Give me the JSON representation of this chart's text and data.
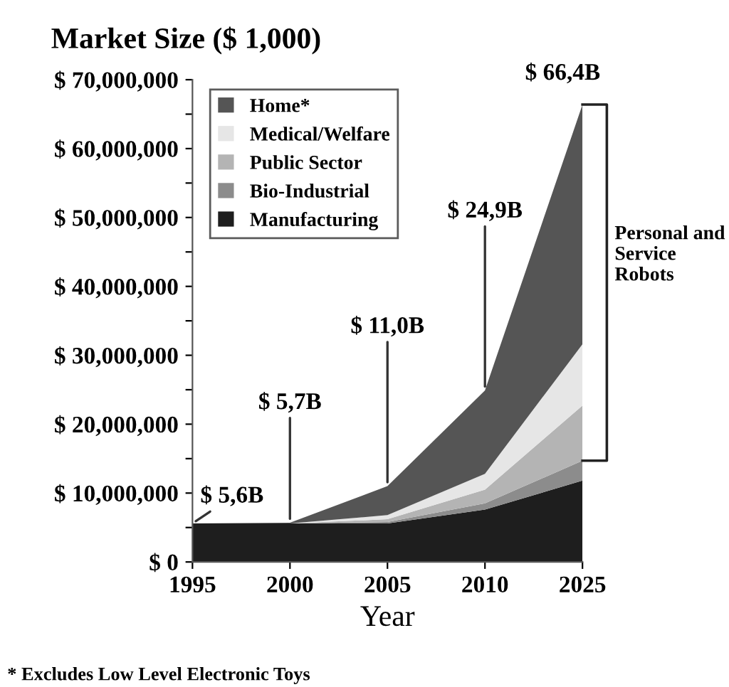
{
  "chart_data": {
    "type": "area",
    "stacked": true,
    "title": "Market Size ($ 1,000)",
    "xlabel": "Year",
    "categories": [
      "1995",
      "2000",
      "2005",
      "2010",
      "2025"
    ],
    "series": [
      {
        "name": "Manufacturing",
        "color": "#1e1e1e",
        "values": [
          5600000,
          5600000,
          5600000,
          7600000,
          11800000
        ]
      },
      {
        "name": "Bio-Industrial",
        "color": "#8c8c8c",
        "values": [
          0,
          0,
          200000,
          900000,
          2900000
        ]
      },
      {
        "name": "Public Sector",
        "color": "#b4b4b4",
        "values": [
          0,
          0,
          400000,
          2000000,
          8000000
        ]
      },
      {
        "name": "Medical/Welfare",
        "color": "#e6e6e6",
        "values": [
          0,
          0,
          600000,
          2300000,
          8900000
        ]
      },
      {
        "name": "Home*",
        "color": "#555555",
        "values": [
          0,
          100000,
          4200000,
          12100000,
          34800000
        ]
      }
    ],
    "ylim": [
      0,
      70000000
    ],
    "yticks": [
      {
        "value": 0,
        "label": "$ 0"
      },
      {
        "value": 5000000,
        "label": null
      },
      {
        "value": 10000000,
        "label": "$ 10,000,000"
      },
      {
        "value": 15000000,
        "label": null
      },
      {
        "value": 20000000,
        "label": "$ 20,000,000"
      },
      {
        "value": 25000000,
        "label": null
      },
      {
        "value": 30000000,
        "label": "$ 30,000,000"
      },
      {
        "value": 35000000,
        "label": null
      },
      {
        "value": 40000000,
        "label": "$ 40,000,000"
      },
      {
        "value": 45000000,
        "label": null
      },
      {
        "value": 50000000,
        "label": "$ 50,000,000"
      },
      {
        "value": 55000000,
        "label": null
      },
      {
        "value": 60000000,
        "label": "$ 60,000,000"
      },
      {
        "value": 65000000,
        "label": null
      },
      {
        "value": 70000000,
        "label": "$ 70,000,000"
      }
    ],
    "annotations": [
      {
        "text": "$ 5,6B",
        "x": "1995",
        "y": 5600000
      },
      {
        "text": "$ 5,7B",
        "x": "2000",
        "y": 5700000
      },
      {
        "text": "$ 11,0B",
        "x": "2005",
        "y": 11000000
      },
      {
        "text": "$ 24,9B",
        "x": "2010",
        "y": 24900000
      },
      {
        "text": "$ 66,4B",
        "x": "2025",
        "y": 66400000
      },
      "Personal and Service Robots",
      "* Excludes Low Level Electronic Toys"
    ],
    "legend": "top left",
    "grid": false
  }
}
